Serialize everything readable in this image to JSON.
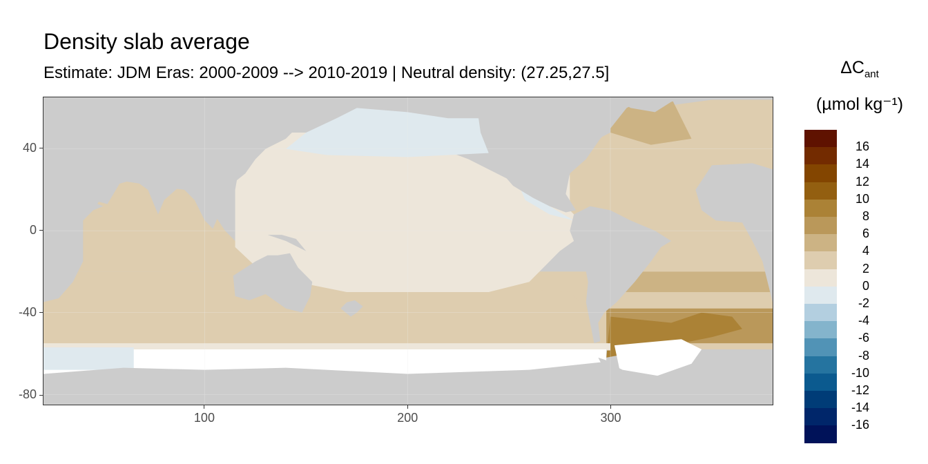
{
  "title": "Density slab average",
  "subtitle": "Estimate: JDM Eras: 2000-2009 --> 2010-2019 | Neutral density: (27.25,27.5]",
  "legend": {
    "title_main": "ΔC",
    "title_sub": "ant",
    "unit": "(µmol kg⁻¹)",
    "bins": [
      {
        "color": "#5f1200"
      },
      {
        "color": "#732b00"
      },
      {
        "color": "#834500"
      },
      {
        "color": "#935f10"
      },
      {
        "color": "#ab8236"
      },
      {
        "color": "#ba985a"
      },
      {
        "color": "#ccb384"
      },
      {
        "color": "#decdaf"
      },
      {
        "color": "#ede6da"
      },
      {
        "color": "#dfe9ee"
      },
      {
        "color": "#b3cfe0"
      },
      {
        "color": "#84b4cc"
      },
      {
        "color": "#5193b6"
      },
      {
        "color": "#2574a0"
      },
      {
        "color": "#0b5a8f"
      },
      {
        "color": "#003c77"
      },
      {
        "color": "#00266a"
      },
      {
        "color": "#001259"
      }
    ],
    "labels": [
      "16",
      "14",
      "12",
      "10",
      "8",
      "6",
      "4",
      "2",
      "0",
      "-2",
      "-4",
      "-6",
      "-8",
      "-10",
      "-12",
      "-14",
      "-16"
    ]
  },
  "chart_data": {
    "type": "heatmap",
    "title": "Density slab average",
    "xlim": [
      20.5,
      380
    ],
    "ylim": [
      -85,
      65
    ],
    "x_ticks": [
      {
        "v": 100,
        "label": "100"
      },
      {
        "v": 200,
        "label": "200"
      },
      {
        "v": 300,
        "label": "300"
      }
    ],
    "y_ticks": [
      {
        "v": 40,
        "label": "40"
      },
      {
        "v": 0,
        "label": "0"
      },
      {
        "v": -40,
        "label": "-40"
      },
      {
        "v": -80,
        "label": "-80"
      }
    ],
    "colors": {
      "land": "#cccccc",
      "na": "#ffffff"
    }
  }
}
